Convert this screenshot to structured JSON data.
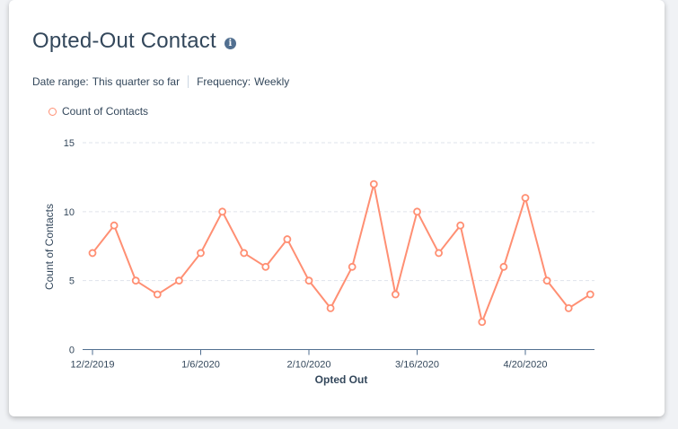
{
  "card": {
    "title": "Opted-Out Contact",
    "info_icon": "info-icon",
    "date_range_label": "Date range:",
    "date_range_value": "This quarter so far",
    "frequency_label": "Frequency:",
    "frequency_value": "Weekly"
  },
  "chart_data": {
    "type": "line",
    "x": [
      "12/2/2019",
      "12/9/2019",
      "12/16/2019",
      "12/23/2019",
      "12/30/2019",
      "1/6/2020",
      "1/13/2020",
      "1/20/2020",
      "1/27/2020",
      "2/3/2020",
      "2/10/2020",
      "2/17/2020",
      "2/24/2020",
      "3/2/2020",
      "3/9/2020",
      "3/16/2020",
      "3/23/2020",
      "3/30/2020",
      "4/6/2020",
      "4/13/2020",
      "4/20/2020",
      "4/27/2020",
      "5/4/2020",
      "5/11/2020"
    ],
    "series": [
      {
        "name": "Count of Contacts",
        "values": [
          7,
          9,
          5,
          4,
          5,
          7,
          10,
          7,
          6,
          8,
          5,
          3,
          6,
          12,
          4,
          10,
          7,
          9,
          2,
          6,
          11,
          5,
          3,
          4
        ]
      }
    ],
    "x_tick_labels": [
      "12/2/2019",
      "1/6/2020",
      "2/10/2020",
      "3/16/2020",
      "4/20/2020"
    ],
    "x_tick_indices": [
      0,
      5,
      10,
      15,
      20
    ],
    "y_ticks": [
      0,
      5,
      10,
      15
    ],
    "ylim": [
      0,
      15
    ],
    "xlabel": "Opted Out",
    "ylabel": "Count of Contacts",
    "legend": "top-left",
    "grid": true,
    "colors": {
      "line": "#ff8f73",
      "grid": "#dfe3eb",
      "axis": "#516f90"
    }
  }
}
